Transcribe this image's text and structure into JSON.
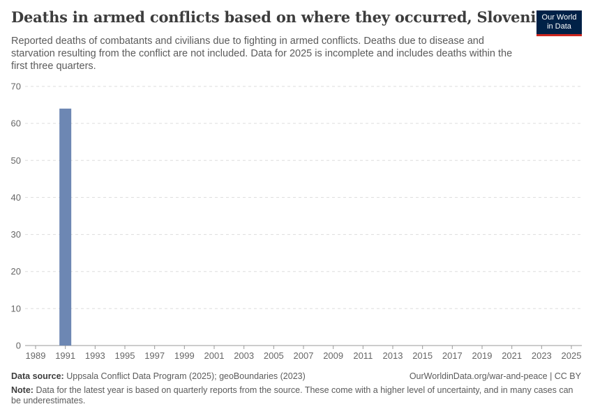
{
  "header": {
    "title": "Deaths in armed conflicts based on where they occurred, Slovenia",
    "subtitle": "Reported deaths of combatants and civilians due to fighting in armed conflicts. Deaths due to disease and starvation resulting from the conflict are not included. Data for 2025 is incomplete and includes deaths within the first three quarters.",
    "logo_line1": "Our World",
    "logo_line2": "in Data"
  },
  "footer": {
    "source_label": "Data source:",
    "source_text": "Uppsala Conflict Data Program (2025); geoBoundaries (2023)",
    "url": "OurWorldinData.org/war-and-peace | CC BY",
    "note_label": "Note:",
    "note_text": "Data for the latest year is based on quarterly reports from the source. These come with a higher level of uncertainty, and in many cases can be underestimates."
  },
  "colors": {
    "bar": "#6d87b3",
    "grid": "#dddddd",
    "axis": "#999999",
    "logo_bg": "#002147",
    "logo_accent": "#ce261e"
  },
  "chart_data": {
    "type": "bar",
    "title": "Deaths in armed conflicts based on where they occurred, Slovenia",
    "x": [
      1991
    ],
    "values": [
      64
    ],
    "xlim": [
      1989,
      2025
    ],
    "x_ticks": [
      "1989",
      "1991",
      "1993",
      "1995",
      "1997",
      "1999",
      "2001",
      "2003",
      "2005",
      "2007",
      "2009",
      "2011",
      "2013",
      "2015",
      "2017",
      "2019",
      "2021",
      "2023",
      "2025"
    ],
    "ylim": [
      0,
      70
    ],
    "y_ticks": [
      "0",
      "10",
      "20",
      "30",
      "40",
      "50",
      "60",
      "70"
    ],
    "grid": true
  }
}
